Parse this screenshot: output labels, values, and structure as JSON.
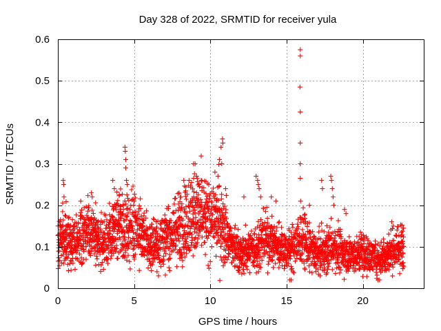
{
  "chart_data": {
    "type": "scatter",
    "title": "Day 328 of 2022, SRMTID for receiver yula",
    "xlabel": "GPS time / hours",
    "ylabel": "SRMTID / TECUs",
    "xlim": [
      0,
      24.0
    ],
    "ylim": [
      0,
      0.6
    ],
    "x_ticks": [
      0,
      5,
      10,
      15,
      20
    ],
    "x_tick_labels": [
      "0",
      "5",
      "10",
      "15",
      "20"
    ],
    "y_ticks": [
      0,
      0.1,
      0.2,
      0.3,
      0.4,
      0.5,
      0.6
    ],
    "y_tick_labels": [
      "0",
      "0.1",
      "0.2",
      "0.3",
      "0.4",
      "0.5",
      "0.6"
    ],
    "grid": true,
    "marker": "plus",
    "color": "#ff0000",
    "series": [
      {
        "name": "SRMTID",
        "trend": {
          "x": [
            0,
            0.5,
            1,
            1.5,
            2,
            2.5,
            3,
            3.5,
            4,
            4.5,
            5,
            5.5,
            6,
            6.5,
            7,
            7.5,
            8,
            8.5,
            9,
            9.5,
            10,
            10.5,
            11,
            11.5,
            12,
            12.5,
            13,
            13.5,
            14,
            14.5,
            15,
            15.5,
            16,
            16.5,
            17,
            17.5,
            18,
            18.5,
            19,
            19.5,
            20,
            20.5,
            21,
            21.5,
            22,
            22.7
          ],
          "y": [
            0.12,
            0.13,
            0.1,
            0.13,
            0.14,
            0.12,
            0.11,
            0.13,
            0.15,
            0.14,
            0.16,
            0.13,
            0.1,
            0.11,
            0.12,
            0.13,
            0.15,
            0.16,
            0.18,
            0.17,
            0.16,
            0.17,
            0.14,
            0.1,
            0.08,
            0.09,
            0.1,
            0.12,
            0.11,
            0.1,
            0.09,
            0.1,
            0.12,
            0.1,
            0.08,
            0.09,
            0.1,
            0.09,
            0.08,
            0.08,
            0.09,
            0.08,
            0.07,
            0.08,
            0.09,
            0.1
          ]
        },
        "highlights": [
          {
            "x": 0.35,
            "y": 0.26
          },
          {
            "x": 0.38,
            "y": 0.25
          },
          {
            "x": 0.4,
            "y": 0.22
          },
          {
            "x": 1.5,
            "y": 0.21
          },
          {
            "x": 2.2,
            "y": 0.23
          },
          {
            "x": 2.25,
            "y": 0.22
          },
          {
            "x": 3.6,
            "y": 0.26
          },
          {
            "x": 3.7,
            "y": 0.24
          },
          {
            "x": 4.4,
            "y": 0.34
          },
          {
            "x": 4.42,
            "y": 0.33
          },
          {
            "x": 4.45,
            "y": 0.31
          },
          {
            "x": 4.45,
            "y": 0.29
          },
          {
            "x": 4.5,
            "y": 0.26
          },
          {
            "x": 4.55,
            "y": 0.25
          },
          {
            "x": 5.0,
            "y": 0.21
          },
          {
            "x": 6.5,
            "y": 0.04
          },
          {
            "x": 6.6,
            "y": 0.03
          },
          {
            "x": 8.6,
            "y": 0.26
          },
          {
            "x": 8.9,
            "y": 0.3
          },
          {
            "x": 9.0,
            "y": 0.3
          },
          {
            "x": 9.1,
            "y": 0.27
          },
          {
            "x": 9.4,
            "y": 0.26
          },
          {
            "x": 9.9,
            "y": 0.25
          },
          {
            "x": 10.3,
            "y": 0.28
          },
          {
            "x": 10.5,
            "y": 0.27
          },
          {
            "x": 10.6,
            "y": 0.31
          },
          {
            "x": 10.7,
            "y": 0.34
          },
          {
            "x": 10.8,
            "y": 0.36
          },
          {
            "x": 10.82,
            "y": 0.35
          },
          {
            "x": 10.75,
            "y": 0.3
          },
          {
            "x": 11.0,
            "y": 0.24
          },
          {
            "x": 12.2,
            "y": 0.22
          },
          {
            "x": 13.0,
            "y": 0.27
          },
          {
            "x": 13.1,
            "y": 0.26
          },
          {
            "x": 13.15,
            "y": 0.25
          },
          {
            "x": 13.2,
            "y": 0.24
          },
          {
            "x": 13.3,
            "y": 0.22
          },
          {
            "x": 14.0,
            "y": 0.22
          },
          {
            "x": 14.3,
            "y": 0.21
          },
          {
            "x": 15.2,
            "y": 0.02
          },
          {
            "x": 15.3,
            "y": 0.02
          },
          {
            "x": 15.9,
            "y": 0.575
          },
          {
            "x": 15.9,
            "y": 0.56
          },
          {
            "x": 15.88,
            "y": 0.485
          },
          {
            "x": 15.9,
            "y": 0.425
          },
          {
            "x": 15.9,
            "y": 0.35
          },
          {
            "x": 15.9,
            "y": 0.3
          },
          {
            "x": 15.9,
            "y": 0.265
          },
          {
            "x": 15.92,
            "y": 0.21
          },
          {
            "x": 16.5,
            "y": 0.2
          },
          {
            "x": 17.3,
            "y": 0.26
          },
          {
            "x": 17.35,
            "y": 0.24
          },
          {
            "x": 17.9,
            "y": 0.27
          },
          {
            "x": 17.95,
            "y": 0.26
          },
          {
            "x": 18.0,
            "y": 0.24
          },
          {
            "x": 18.05,
            "y": 0.22
          },
          {
            "x": 18.1,
            "y": 0.2
          },
          {
            "x": 18.8,
            "y": 0.19
          },
          {
            "x": 18.9,
            "y": 0.18
          },
          {
            "x": 21.0,
            "y": 0.02
          },
          {
            "x": 21.1,
            "y": 0.02
          },
          {
            "x": 21.9,
            "y": 0.16
          },
          {
            "x": 22.0,
            "y": 0.15
          }
        ]
      }
    ]
  }
}
